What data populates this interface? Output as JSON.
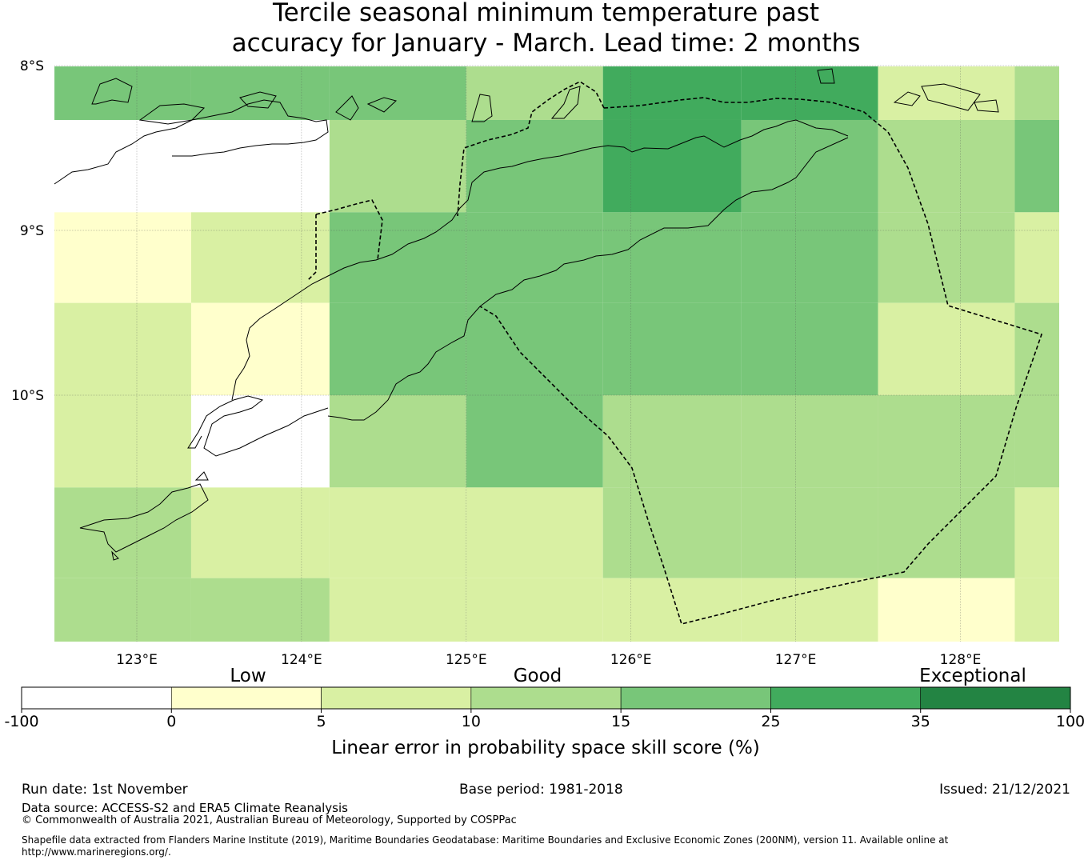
{
  "title": {
    "line1": "Tercile seasonal minimum temperature past",
    "line2": "accuracy for January - March. Lead time: 2 months"
  },
  "chart_data": {
    "type": "heatmap",
    "lon_range": [
      122.5,
      128.6
    ],
    "lat_range": [
      -11.5,
      -8.0
    ],
    "lon_ticks": [
      "123°E",
      "124°E",
      "125°E",
      "126°E",
      "127°E",
      "128°E"
    ],
    "lat_ticks": [
      "8°S",
      "9°S",
      "10°S"
    ],
    "grid_lon_edges": [
      122.5,
      123.33,
      124.17,
      125.0,
      125.83,
      126.67,
      127.5,
      128.33,
      128.6
    ],
    "grid_lat_edges": [
      -8.0,
      -8.33,
      -8.89,
      -9.44,
      -10.0,
      -10.56,
      -11.11,
      -11.5
    ],
    "cell_category": [
      [
        4,
        4,
        4,
        3,
        5,
        5,
        2,
        3
      ],
      [
        -1,
        -1,
        3,
        4,
        5,
        4,
        3,
        4
      ],
      [
        1,
        2,
        4,
        4,
        4,
        4,
        3,
        2
      ],
      [
        2,
        1,
        4,
        4,
        4,
        4,
        2,
        3
      ],
      [
        2,
        -1,
        3,
        4,
        3,
        3,
        3,
        3
      ],
      [
        3,
        2,
        2,
        2,
        3,
        3,
        3,
        2
      ],
      [
        3,
        3,
        2,
        2,
        2,
        2,
        1,
        2
      ]
    ],
    "colorbar": {
      "boundaries": [
        "-100",
        "0",
        "5",
        "10",
        "15",
        "25",
        "35",
        "100"
      ],
      "colors": [
        "#ffffff",
        "#ffffcc",
        "#d9f0a3",
        "#addd8e",
        "#78c679",
        "#41ab5d",
        "#238443"
      ],
      "label": "Linear error in probability space skill score (%)",
      "qualitative": [
        "Low",
        "Good",
        "Exceptional"
      ]
    }
  },
  "footer": {
    "run_date": "Run date: 1st November",
    "base_period": "Base period: 1981-2018",
    "issued": "Issued: 21/12/2021",
    "data_source": "Data source: ACCESS-S2 and ERA5 Climate Reanalysis",
    "copyright": "© Commonwealth of Australia 2021, Australian Bureau of Meteorology, Supported by COSPPac",
    "shapefile_line1": "Shapefile data extracted from Flanders Marine Institute (2019), Maritime Boundaries Geodatabase: Maritime Boundaries and Exclusive Economic Zones (200NM), version 11. Available online at",
    "shapefile_line2": "http://www.marineregions.org/."
  }
}
